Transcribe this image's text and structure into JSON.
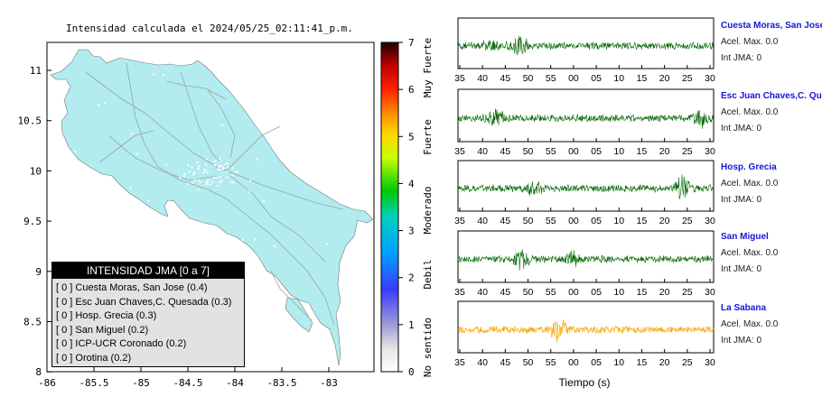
{
  "map": {
    "title": "Intensidad calculada el 2024/05/25_02:11:41_p.m.",
    "x_ticks": [
      "-86",
      "-85.5",
      "-85",
      "-84.5",
      "-84",
      "-83.5",
      "-83"
    ],
    "y_ticks": [
      "11",
      "10.5",
      "10",
      "9.5",
      "9",
      "8.5",
      "8"
    ],
    "land_color": "#b2ecef",
    "road_color": "#a0a0a0"
  },
  "colorbar": {
    "ticks": [
      "0",
      "1",
      "2",
      "3",
      "4",
      "5",
      "6",
      "7"
    ],
    "categories": [
      "No sentido",
      "Debil",
      "Moderado",
      "Fuerte",
      "Muy Fuerte"
    ]
  },
  "legend": {
    "title": "INTENSIDAD JMA [0 a 7]",
    "items": [
      "[ 0 ]  Cuesta Moras, San Jose (0.4)",
      "[ 0 ]  Esc Juan Chaves,C. Quesada (0.3)",
      "[ 0 ]  Hosp. Grecia (0.3)",
      "[ 0 ]  San Miguel (0.2)",
      "[ 0 ]  ICP-UCR Coronado (0.2)",
      "[ 0 ]  Orotina (0.2)"
    ]
  },
  "chart_data": [
    {
      "type": "line",
      "title": "Cuesta Moras, San Jose",
      "xlabel": "",
      "x_ticks": [
        "35",
        "40",
        "45",
        "50",
        "55",
        "00",
        "05",
        "10",
        "15",
        "20",
        "25",
        "30"
      ],
      "color": "#006400",
      "notes": [
        "Acel. Max. 0.0",
        "Int JMA: 0"
      ]
    },
    {
      "type": "line",
      "title": "Esc Juan Chaves,C. Qu",
      "xlabel": "",
      "x_ticks": [
        "35",
        "40",
        "45",
        "50",
        "55",
        "00",
        "05",
        "10",
        "15",
        "20",
        "25",
        "30"
      ],
      "color": "#006400",
      "notes": [
        "Acel. Max. 0.0",
        "Int JMA: 0"
      ]
    },
    {
      "type": "line",
      "title": "Hosp. Grecia",
      "xlabel": "",
      "x_ticks": [
        "35",
        "40",
        "45",
        "50",
        "55",
        "00",
        "05",
        "10",
        "15",
        "20",
        "25",
        "30"
      ],
      "color": "#006400",
      "notes": [
        "Acel. Max. 0.0",
        "Int JMA: 0"
      ]
    },
    {
      "type": "line",
      "title": "San Miguel",
      "xlabel": "",
      "x_ticks": [
        "35",
        "40",
        "45",
        "50",
        "55",
        "00",
        "05",
        "10",
        "15",
        "20",
        "25",
        "30"
      ],
      "color": "#006400",
      "notes": [
        "Acel. Max. 0.0",
        "Int JMA: 0"
      ]
    },
    {
      "type": "line",
      "title": "La Sabana",
      "xlabel": "Tiempo (s)",
      "x_ticks": [
        "35",
        "40",
        "45",
        "50",
        "55",
        "00",
        "05",
        "10",
        "15",
        "20",
        "25",
        "30"
      ],
      "color": "#f5a300",
      "notes": [
        "Acel. Max. 0.0",
        "Int JMA: 0"
      ]
    }
  ]
}
